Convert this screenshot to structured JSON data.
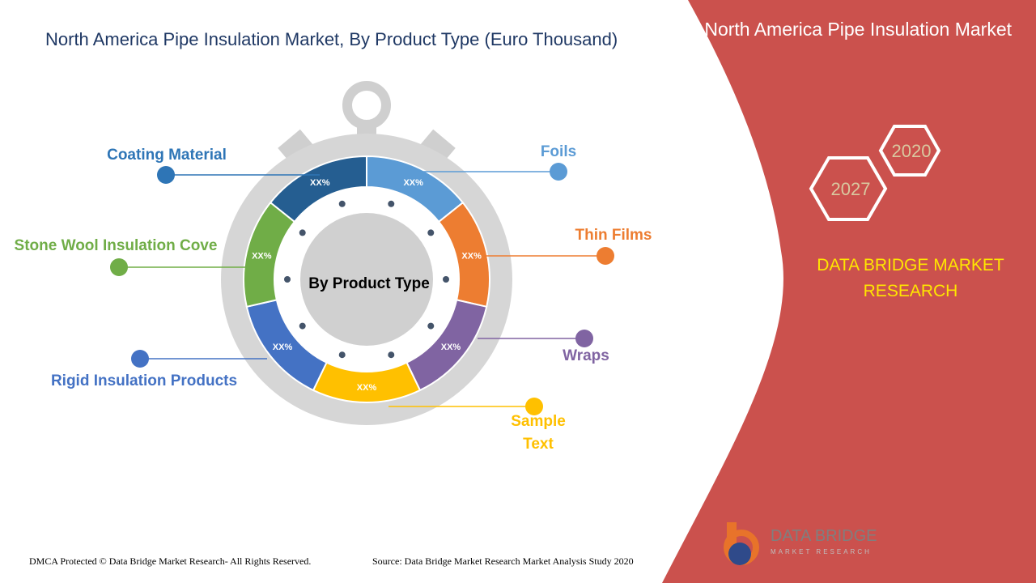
{
  "title": "North America Pipe Insulation Market, By Product Type (Euro Thousand)",
  "center_label": "By Product Type",
  "segments": [
    {
      "label": "Coating Material",
      "value_label": "XX%"
    },
    {
      "label": "Foils",
      "value_label": "XX%"
    },
    {
      "label": "Thin Films",
      "value_label": "XX%"
    },
    {
      "label": "Wraps",
      "value_label": "XX%"
    },
    {
      "label": "Sample Text",
      "value_label": "XX%"
    },
    {
      "label": "Rigid Insulation Products",
      "value_label": "XX%"
    },
    {
      "label": "Stone Wool Insulation Cove",
      "value_label": "XX%"
    }
  ],
  "sidebar": {
    "title": "North America Pipe Insulation Market",
    "years": [
      "2020",
      "2027"
    ],
    "brand": "DATA BRIDGE MARKET RESEARCH"
  },
  "logo": {
    "name": "DATA BRIDGE",
    "tagline": "MARKET RESEARCH"
  },
  "footer": {
    "left": "DMCA Protected © Data Bridge Market Research- All Rights Reserved.",
    "right": "Source: Data Bridge Market Research Market Analysis Study 2020"
  }
}
